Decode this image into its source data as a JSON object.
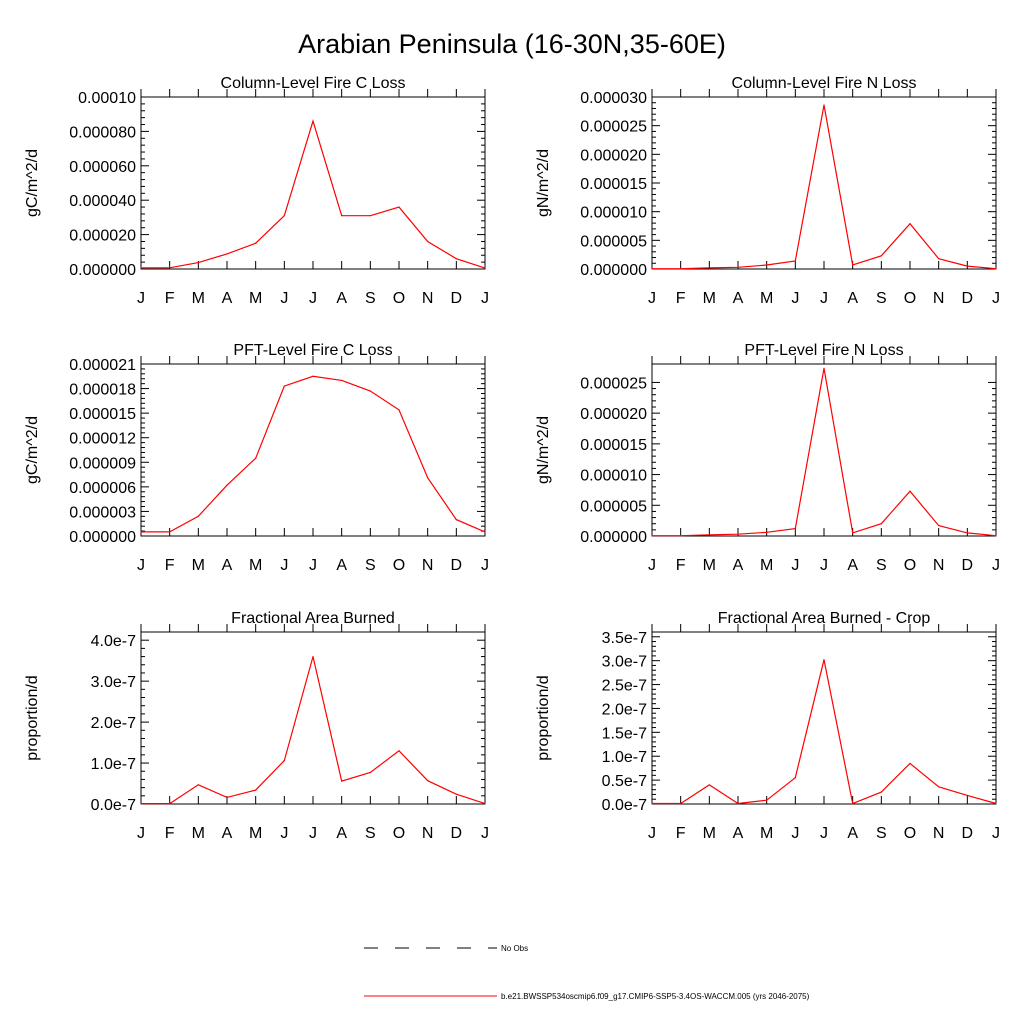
{
  "figure": {
    "title": "Arabian Peninsula (16-30N,35-60E)",
    "line_color": "#ff0000",
    "axis_color": "#000000"
  },
  "chart_data": [
    {
      "type": "line",
      "title": "Column-Level Fire C Loss",
      "xlabel": "",
      "ylabel": "gC/m^2/d",
      "categories": [
        "J",
        "F",
        "M",
        "A",
        "M",
        "J",
        "J",
        "A",
        "S",
        "O",
        "N",
        "D",
        "J"
      ],
      "ylim": [
        0,
        0.0001
      ],
      "yticks": [
        0,
        2e-05,
        4e-05,
        6e-05,
        8e-05,
        0.0001
      ],
      "ytick_labels": [
        "0.000000",
        "0.000020",
        "0.000040",
        "0.000060",
        "0.000080",
        "0.00010"
      ],
      "grid": false,
      "series": [
        {
          "color": "#ff0000",
          "values": [
            7e-07,
            7e-07,
            3.7e-06,
            8.8e-06,
            1.5e-05,
            3.1e-05,
            8.6e-05,
            3.1e-05,
            3.1e-05,
            3.6e-05,
            1.6e-05,
            6e-06,
            5e-07
          ]
        }
      ]
    },
    {
      "type": "line",
      "title": "Column-Level Fire N Loss",
      "xlabel": "",
      "ylabel": "gN/m^2/d",
      "categories": [
        "J",
        "F",
        "M",
        "A",
        "M",
        "J",
        "J",
        "A",
        "S",
        "O",
        "N",
        "D",
        "J"
      ],
      "ylim": [
        0,
        3e-05
      ],
      "yticks": [
        0,
        5e-06,
        1e-05,
        1.5e-05,
        2e-05,
        2.5e-05,
        3e-05
      ],
      "ytick_labels": [
        "0.000000",
        "0.000005",
        "0.000010",
        "0.000015",
        "0.000020",
        "0.000025",
        "0.000030"
      ],
      "grid": false,
      "series": [
        {
          "color": "#ff0000",
          "values": [
            5e-08,
            5e-08,
            2e-07,
            3e-07,
            7e-07,
            1.4e-06,
            2.86e-05,
            7e-07,
            2.3e-06,
            7.9e-06,
            1.8e-06,
            5e-07,
            5e-08
          ]
        }
      ]
    },
    {
      "type": "line",
      "title": "PFT-Level Fire C Loss",
      "xlabel": "",
      "ylabel": "gC/m^2/d",
      "categories": [
        "J",
        "F",
        "M",
        "A",
        "M",
        "J",
        "J",
        "A",
        "S",
        "O",
        "N",
        "D",
        "J"
      ],
      "ylim": [
        0,
        2.1e-05
      ],
      "yticks": [
        0,
        3e-06,
        6e-06,
        9e-06,
        1.2e-05,
        1.5e-05,
        1.8e-05,
        2.1e-05
      ],
      "ytick_labels": [
        "0.000000",
        "0.000003",
        "0.000006",
        "0.000009",
        "0.000012",
        "0.000015",
        "0.000018",
        "0.000021"
      ],
      "grid": false,
      "series": [
        {
          "color": "#ff0000",
          "values": [
            5e-07,
            5e-07,
            2.4e-06,
            6.2e-06,
            9.5e-06,
            1.83e-05,
            1.95e-05,
            1.9e-05,
            1.77e-05,
            1.54e-05,
            7.1e-06,
            2e-06,
            5e-07
          ]
        }
      ]
    },
    {
      "type": "line",
      "title": "PFT-Level Fire N Loss",
      "xlabel": "",
      "ylabel": "gN/m^2/d",
      "categories": [
        "J",
        "F",
        "M",
        "A",
        "M",
        "J",
        "J",
        "A",
        "S",
        "O",
        "N",
        "D",
        "J"
      ],
      "ylim": [
        0,
        2.8e-05
      ],
      "yticks": [
        0,
        5e-06,
        1e-05,
        1.5e-05,
        2e-05,
        2.5e-05
      ],
      "ytick_labels": [
        "0.000000",
        "0.000005",
        "0.000010",
        "0.000015",
        "0.000020",
        "0.000025"
      ],
      "grid": false,
      "series": [
        {
          "color": "#ff0000",
          "values": [
            5e-08,
            5e-08,
            2e-07,
            3e-07,
            6e-07,
            1.2e-06,
            2.73e-05,
            5e-07,
            2e-06,
            7.3e-06,
            1.7e-06,
            5e-07,
            5e-08
          ]
        }
      ]
    },
    {
      "type": "line",
      "title": "Fractional Area Burned",
      "xlabel": "",
      "ylabel": "proportion/d",
      "categories": [
        "J",
        "F",
        "M",
        "A",
        "M",
        "J",
        "J",
        "A",
        "S",
        "O",
        "N",
        "D",
        "J"
      ],
      "ylim": [
        0,
        4.2e-07
      ],
      "yticks": [
        0,
        1e-07,
        2e-07,
        3e-07,
        4e-07
      ],
      "ytick_labels": [
        "0.0e-7",
        "1.0e-7",
        "2.0e-7",
        "3.0e-7",
        "4.0e-7"
      ],
      "grid": false,
      "series": [
        {
          "color": "#ff0000",
          "values": [
            1e-09,
            1e-09,
            4.7e-08,
            1.6e-08,
            3.4e-08,
            1.06e-07,
            3.6e-07,
            5.6e-08,
            7.7e-08,
            1.3e-07,
            5.7e-08,
            2.4e-08,
            1e-09
          ]
        }
      ]
    },
    {
      "type": "line",
      "title": "Fractional Area Burned - Crop",
      "xlabel": "",
      "ylabel": "proportion/d",
      "categories": [
        "J",
        "F",
        "M",
        "A",
        "M",
        "J",
        "J",
        "A",
        "S",
        "O",
        "N",
        "D",
        "J"
      ],
      "ylim": [
        0,
        3.6e-07
      ],
      "yticks": [
        0,
        5e-08,
        1e-07,
        1.5e-07,
        2e-07,
        2.5e-07,
        3e-07,
        3.5e-07
      ],
      "ytick_labels": [
        "0.0e-7",
        "0.5e-7",
        "1.0e-7",
        "1.5e-7",
        "2.0e-7",
        "2.5e-7",
        "3.0e-7",
        "3.5e-7"
      ],
      "grid": false,
      "series": [
        {
          "color": "#ff0000",
          "values": [
            1e-09,
            1e-09,
            4e-08,
            1e-09,
            8e-09,
            5.5e-08,
            3.02e-07,
            1e-09,
            2.5e-08,
            8.5e-08,
            3.6e-08,
            1.8e-08,
            1e-09
          ]
        }
      ]
    }
  ],
  "legend": {
    "placement": "bottom",
    "entries": [
      {
        "label": "No Obs",
        "style": "dashed",
        "color": "#000000"
      },
      {
        "label": "b.e21.BWSSP534oscmip6.f09_g17.CMIP6-SSP5-3.4OS-WACCM.005 (yrs 2046-2075)",
        "style": "solid",
        "color": "#ff0000"
      }
    ]
  }
}
